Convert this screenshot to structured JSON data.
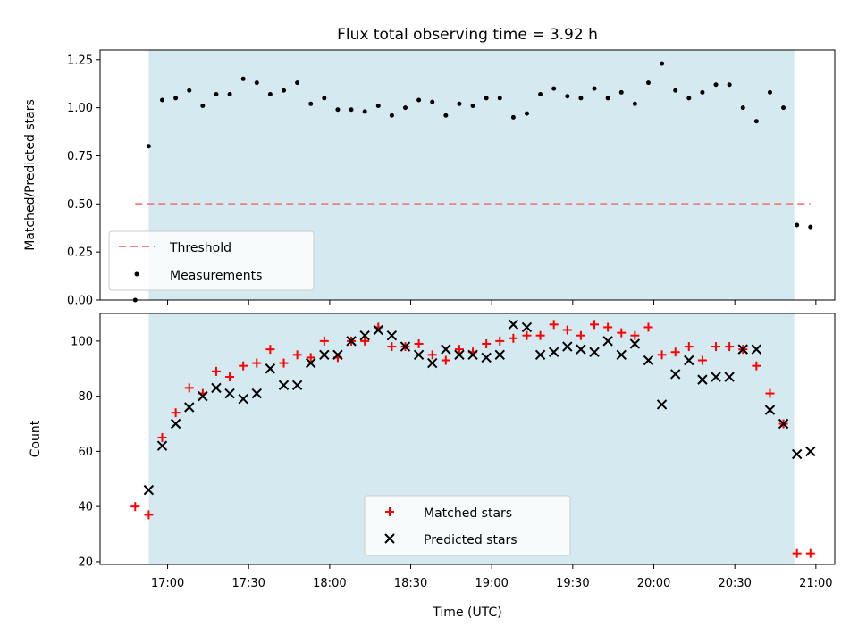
{
  "chart_data": [
    {
      "type": "scatter",
      "title": "Flux total observing time = 3.92 h",
      "xlabel": "",
      "ylabel": "Matched/Predicted stars",
      "xlim": [
        "16:35",
        "21:07"
      ],
      "ylim": [
        0,
        1.3
      ],
      "yticks": [
        "0.00",
        "0.25",
        "0.50",
        "0.75",
        "1.00",
        "1.25"
      ],
      "shaded_interval": [
        "16:53",
        "20:52"
      ],
      "shaded_color": "#d4eaf0",
      "threshold": {
        "name": "Threshold",
        "value": 0.5,
        "x_range": [
          "16:48",
          "20:58"
        ],
        "color": "#f08080"
      },
      "series": [
        {
          "name": "Measurements",
          "color": "#000000",
          "x": [
            "16:48",
            "16:53",
            "16:58",
            "17:03",
            "17:08",
            "17:13",
            "17:18",
            "17:23",
            "17:28",
            "17:33",
            "17:38",
            "17:43",
            "17:48",
            "17:53",
            "17:58",
            "18:03",
            "18:08",
            "18:13",
            "18:18",
            "18:23",
            "18:28",
            "18:33",
            "18:38",
            "18:43",
            "18:48",
            "18:53",
            "18:58",
            "19:03",
            "19:08",
            "19:13",
            "19:18",
            "19:23",
            "19:28",
            "19:33",
            "19:38",
            "19:43",
            "19:48",
            "19:53",
            "19:58",
            "20:03",
            "20:08",
            "20:13",
            "20:18",
            "20:23",
            "20:28",
            "20:33",
            "20:38",
            "20:43",
            "20:48",
            "20:53",
            "20:58"
          ],
          "y": [
            0.0,
            0.8,
            1.04,
            1.05,
            1.09,
            1.01,
            1.07,
            1.07,
            1.15,
            1.13,
            1.07,
            1.09,
            1.13,
            1.02,
            1.05,
            0.99,
            0.99,
            0.98,
            1.01,
            0.96,
            1.0,
            1.04,
            1.03,
            0.96,
            1.02,
            1.01,
            1.05,
            1.05,
            0.95,
            0.97,
            1.07,
            1.1,
            1.06,
            1.05,
            1.1,
            1.05,
            1.08,
            1.02,
            1.13,
            1.23,
            1.09,
            1.05,
            1.08,
            1.12,
            1.12,
            1.0,
            0.93,
            1.08,
            1.0,
            0.39,
            0.38
          ]
        }
      ],
      "legend": {
        "position": "lower-left",
        "entries": [
          "Threshold",
          "Measurements"
        ]
      }
    },
    {
      "type": "scatter",
      "title": "",
      "xlabel": "Time (UTC)",
      "ylabel": "Count",
      "xlim": [
        "16:35",
        "21:07"
      ],
      "ylim": [
        19,
        110
      ],
      "yticks": [
        "20",
        "40",
        "60",
        "80",
        "100"
      ],
      "xticks": [
        "17:00",
        "17:30",
        "18:00",
        "18:30",
        "19:00",
        "19:30",
        "20:00",
        "20:30",
        "21:00"
      ],
      "shaded_interval": [
        "16:53",
        "20:52"
      ],
      "shaded_color": "#d4eaf0",
      "x": [
        "16:48",
        "16:53",
        "16:58",
        "17:03",
        "17:08",
        "17:13",
        "17:18",
        "17:23",
        "17:28",
        "17:33",
        "17:38",
        "17:43",
        "17:48",
        "17:53",
        "17:58",
        "18:03",
        "18:08",
        "18:13",
        "18:18",
        "18:23",
        "18:28",
        "18:33",
        "18:38",
        "18:43",
        "18:48",
        "18:53",
        "18:58",
        "19:03",
        "19:08",
        "19:13",
        "19:18",
        "19:23",
        "19:28",
        "19:33",
        "19:38",
        "19:43",
        "19:48",
        "19:53",
        "19:58",
        "20:03",
        "20:08",
        "20:13",
        "20:18",
        "20:23",
        "20:28",
        "20:33",
        "20:38",
        "20:43",
        "20:48",
        "20:53",
        "20:58"
      ],
      "series": [
        {
          "name": "Matched stars",
          "marker": "+",
          "color": "#ff0000",
          "values": [
            40,
            37,
            65,
            74,
            83,
            81,
            89,
            87,
            91,
            92,
            97,
            92,
            95,
            94,
            100,
            94,
            100,
            100,
            105,
            98,
            98,
            99,
            95,
            93,
            97,
            96,
            99,
            100,
            101,
            102,
            102,
            106,
            104,
            102,
            106,
            105,
            103,
            102,
            105,
            95,
            96,
            98,
            93,
            98,
            98,
            97,
            91,
            81,
            70,
            23,
            23
          ]
        },
        {
          "name": "Predicted stars",
          "marker": "x",
          "color": "#000000",
          "values": [
            null,
            46,
            62,
            70,
            76,
            80,
            83,
            81,
            79,
            81,
            90,
            84,
            84,
            92,
            95,
            95,
            100,
            102,
            104,
            102,
            98,
            95,
            92,
            97,
            95,
            95,
            94,
            95,
            106,
            105,
            95,
            96,
            98,
            97,
            96,
            100,
            95,
            99,
            93,
            77,
            88,
            93,
            86,
            87,
            87,
            97,
            97,
            75,
            70,
            59,
            60
          ]
        }
      ],
      "legend": {
        "position": "lower-center",
        "entries": [
          "Matched stars",
          "Predicted stars"
        ]
      }
    }
  ]
}
